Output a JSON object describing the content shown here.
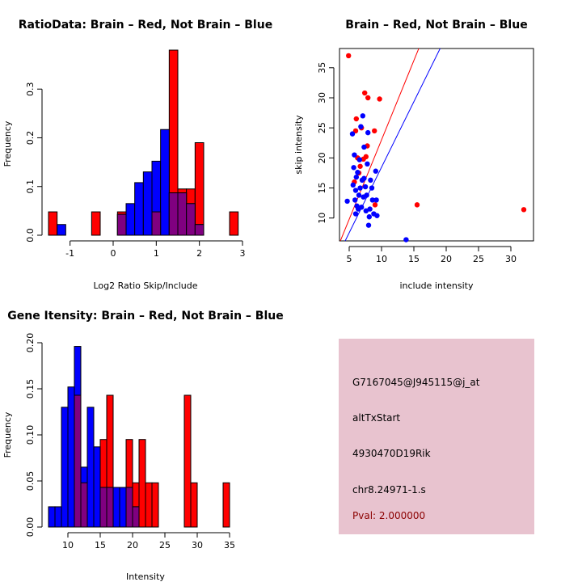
{
  "colors": {
    "brain": "#ff0000",
    "not_brain": "#0000ff",
    "overlap": "#800080",
    "info_panel": "#e8c3cf",
    "pval_text": "#8b0000"
  },
  "chart_data": [
    {
      "id": "ratio_hist",
      "type": "bar",
      "title": "RatioData: Brain – Red, Not Brain – Blue",
      "xlabel": "Log2 Ratio Skip/Include",
      "ylabel": "Frequency",
      "xlim": [
        -1.5,
        3.0
      ],
      "ylim": [
        0,
        0.38
      ],
      "xticks": [
        -1,
        0,
        1,
        2,
        3
      ],
      "yticks": [
        0.0,
        0.1,
        0.2,
        0.3
      ],
      "series": [
        {
          "name": "Brain",
          "color": "red",
          "bins": [
            {
              "x0": -1.5,
              "x1": -1.3,
              "value": 0.048
            },
            {
              "x0": -0.5,
              "x1": -0.3,
              "value": 0.048
            },
            {
              "x0": 0.1,
              "x1": 0.3,
              "value": 0.048
            },
            {
              "x0": 0.9,
              "x1": 1.1,
              "value": 0.048
            },
            {
              "x0": 1.3,
              "x1": 1.5,
              "value": 0.38
            },
            {
              "x0": 1.5,
              "x1": 1.7,
              "value": 0.095
            },
            {
              "x0": 1.7,
              "x1": 1.9,
              "value": 0.095
            },
            {
              "x0": 1.9,
              "x1": 2.1,
              "value": 0.19
            },
            {
              "x0": 2.7,
              "x1": 2.9,
              "value": 0.048
            }
          ]
        },
        {
          "name": "Not Brain",
          "color": "blue",
          "bins": [
            {
              "x0": -1.3,
              "x1": -1.1,
              "value": 0.022
            },
            {
              "x0": 0.1,
              "x1": 0.3,
              "value": 0.043
            },
            {
              "x0": 0.3,
              "x1": 0.5,
              "value": 0.065
            },
            {
              "x0": 0.5,
              "x1": 0.7,
              "value": 0.108
            },
            {
              "x0": 0.7,
              "x1": 0.9,
              "value": 0.13
            },
            {
              "x0": 0.9,
              "x1": 1.1,
              "value": 0.152
            },
            {
              "x0": 1.1,
              "x1": 1.3,
              "value": 0.217
            },
            {
              "x0": 1.3,
              "x1": 1.5,
              "value": 0.087
            },
            {
              "x0": 1.5,
              "x1": 1.7,
              "value": 0.087
            },
            {
              "x0": 1.7,
              "x1": 1.9,
              "value": 0.065
            },
            {
              "x0": 1.9,
              "x1": 2.1,
              "value": 0.022
            }
          ]
        }
      ]
    },
    {
      "id": "scatter",
      "type": "scatter",
      "title": "Brain – Red, Not Brain – Blue",
      "xlabel": "include intensity",
      "ylabel": "skip intensity",
      "xlim": [
        3.5,
        33.5
      ],
      "ylim": [
        6.2,
        38.2
      ],
      "xticks": [
        5,
        10,
        15,
        20,
        25,
        30
      ],
      "yticks": [
        10,
        15,
        20,
        25,
        30,
        35
      ],
      "lines": [
        {
          "name": "Brain fit",
          "color": "red",
          "intercept": -3.4,
          "slope": 2.64
        },
        {
          "name": "Not Brain fit",
          "color": "blue",
          "intercept": -3.35,
          "slope": 2.18
        }
      ],
      "series": [
        {
          "name": "Brain",
          "color": "red",
          "points": [
            [
              4.9,
              37.0
            ],
            [
              5.8,
              16.0
            ],
            [
              6.0,
              24.5
            ],
            [
              6.1,
              26.5
            ],
            [
              6.3,
              20.0
            ],
            [
              6.5,
              17.5
            ],
            [
              6.7,
              18.6
            ],
            [
              6.9,
              25.0
            ],
            [
              7.2,
              19.8
            ],
            [
              7.4,
              30.8
            ],
            [
              7.6,
              20.2
            ],
            [
              7.8,
              22.0
            ],
            [
              7.9,
              30.0
            ],
            [
              8.9,
              24.5
            ],
            [
              9.0,
              12.2
            ],
            [
              9.7,
              29.8
            ],
            [
              15.5,
              12.2
            ],
            [
              32.0,
              11.4
            ]
          ]
        },
        {
          "name": "Not Brain",
          "color": "blue",
          "points": [
            [
              4.7,
              12.8
            ],
            [
              5.5,
              24.0
            ],
            [
              5.6,
              15.5
            ],
            [
              5.7,
              18.4
            ],
            [
              5.8,
              20.5
            ],
            [
              5.9,
              13.0
            ],
            [
              6.0,
              10.7
            ],
            [
              6.0,
              14.6
            ],
            [
              6.1,
              16.8
            ],
            [
              6.2,
              12.0
            ],
            [
              6.3,
              17.6
            ],
            [
              6.4,
              11.5
            ],
            [
              6.5,
              13.8
            ],
            [
              6.6,
              19.7
            ],
            [
              6.7,
              15.0
            ],
            [
              6.8,
              25.2
            ],
            [
              6.9,
              11.8
            ],
            [
              7.0,
              16.3
            ],
            [
              7.1,
              27.0
            ],
            [
              7.2,
              13.5
            ],
            [
              7.3,
              21.8
            ],
            [
              7.3,
              16.6
            ],
            [
              7.5,
              15.2
            ],
            [
              7.6,
              11.2
            ],
            [
              7.7,
              13.8
            ],
            [
              7.8,
              19.0
            ],
            [
              7.9,
              24.2
            ],
            [
              8.0,
              8.8
            ],
            [
              8.1,
              10.2
            ],
            [
              8.2,
              11.5
            ],
            [
              8.3,
              16.3
            ],
            [
              8.5,
              15.0
            ],
            [
              8.6,
              13.0
            ],
            [
              8.8,
              10.7
            ],
            [
              9.1,
              17.8
            ],
            [
              9.2,
              13.0
            ],
            [
              9.3,
              10.4
            ],
            [
              13.8,
              6.4
            ]
          ]
        }
      ]
    },
    {
      "id": "intensity_hist",
      "type": "bar",
      "title": "Gene Itensity: Brain – Red, Not Brain – Blue",
      "xlabel": "Intensity",
      "ylabel": "Frequency",
      "xlim": [
        7,
        37
      ],
      "ylim": [
        0,
        0.2
      ],
      "xticks": [
        10,
        15,
        20,
        25,
        30,
        35
      ],
      "yticks": [
        0.0,
        0.05,
        0.1,
        0.15,
        0.2
      ],
      "series": [
        {
          "name": "Brain",
          "color": "red",
          "bins": [
            {
              "x0": 11,
              "x1": 12,
              "value": 0.143
            },
            {
              "x0": 12,
              "x1": 13,
              "value": 0.048
            },
            {
              "x0": 15,
              "x1": 16,
              "value": 0.095
            },
            {
              "x0": 16,
              "x1": 17,
              "value": 0.143
            },
            {
              "x0": 19,
              "x1": 20,
              "value": 0.095
            },
            {
              "x0": 20,
              "x1": 21,
              "value": 0.048
            },
            {
              "x0": 21,
              "x1": 22,
              "value": 0.095
            },
            {
              "x0": 22,
              "x1": 23,
              "value": 0.048
            },
            {
              "x0": 23,
              "x1": 24,
              "value": 0.048
            },
            {
              "x0": 28,
              "x1": 29,
              "value": 0.143
            },
            {
              "x0": 29,
              "x1": 30,
              "value": 0.048
            },
            {
              "x0": 34,
              "x1": 35,
              "value": 0.048
            }
          ]
        },
        {
          "name": "Not Brain",
          "color": "blue",
          "bins": [
            {
              "x0": 7,
              "x1": 8,
              "value": 0.022
            },
            {
              "x0": 8,
              "x1": 9,
              "value": 0.022
            },
            {
              "x0": 9,
              "x1": 10,
              "value": 0.13
            },
            {
              "x0": 10,
              "x1": 11,
              "value": 0.152
            },
            {
              "x0": 11,
              "x1": 12,
              "value": 0.196
            },
            {
              "x0": 12,
              "x1": 13,
              "value": 0.065
            },
            {
              "x0": 13,
              "x1": 14,
              "value": 0.13
            },
            {
              "x0": 14,
              "x1": 15,
              "value": 0.087
            },
            {
              "x0": 15,
              "x1": 16,
              "value": 0.043
            },
            {
              "x0": 16,
              "x1": 17,
              "value": 0.043
            },
            {
              "x0": 17,
              "x1": 18,
              "value": 0.043
            },
            {
              "x0": 18,
              "x1": 19,
              "value": 0.043
            },
            {
              "x0": 19,
              "x1": 20,
              "value": 0.043
            },
            {
              "x0": 20,
              "x1": 21,
              "value": 0.022
            }
          ]
        }
      ]
    }
  ],
  "info_panel": {
    "probe_id": "G7167045@J945115@j_at",
    "event_type": "altTxStart",
    "gene": "4930470D19Rik",
    "location": "chr8.24971-1.s",
    "pval": "Pval: 2.000000"
  }
}
